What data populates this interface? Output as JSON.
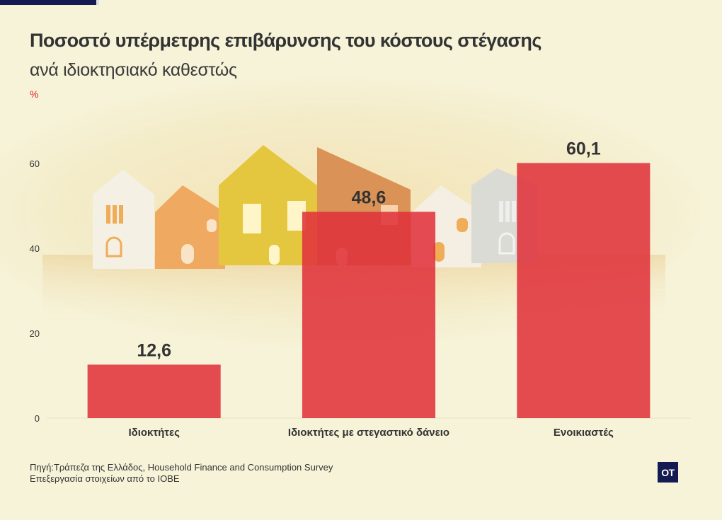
{
  "header": {
    "title": "Ποσοστό υπέρμετρης επιβάρυνσης του κόστους στέγασης",
    "subtitle": "ανά ιδιοκτησιακό καθεστώς",
    "unit": "%"
  },
  "footer": {
    "source_line1": "Πηγή:Τράπεζα της Ελλάδος, Household Finance and Consumption Survey",
    "source_line2": "Επεξεργασία στοιχείων από το ΙΟΒΕ",
    "logo_text": "OT"
  },
  "colors": {
    "bar": "#e0313b",
    "background": "#f6f3d8",
    "logo_bg": "#141a52"
  },
  "chart_data": {
    "type": "bar",
    "title": "Ποσοστό υπέρμετρης επιβάρυνσης του κόστους στέγασης",
    "subtitle": "ανά ιδιοκτησιακό καθεστώς",
    "xlabel": "",
    "ylabel": "%",
    "categories": [
      "Ιδιοκτήτες",
      "Ιδιοκτήτες με στεγαστικό δάνειο",
      "Ενοικιαστές"
    ],
    "values": [
      12.6,
      48.6,
      60.1
    ],
    "value_labels": [
      "12,6",
      "48,6",
      "60,1"
    ],
    "ylim": [
      0,
      60
    ],
    "yticks": [
      0,
      20,
      40,
      60
    ],
    "grid": false,
    "legend": "none"
  }
}
